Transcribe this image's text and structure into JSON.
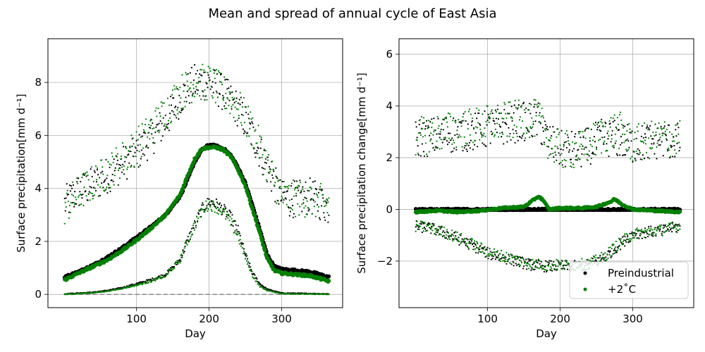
{
  "figure": {
    "title": "Mean and spread of annual cycle of East Asia"
  },
  "colors": {
    "preindustrial": "#000000",
    "plus2c": "#008000",
    "grid": "#b0b0b0",
    "zero_line": "#808080"
  },
  "chart_data": [
    {
      "type": "scatter",
      "xlabel": "Day",
      "ylabel": "Surface precipitation[mm d⁻¹]",
      "xlim": [
        -22,
        384
      ],
      "ylim": [
        -0.5,
        9.65
      ],
      "xticks": [
        100,
        200,
        300
      ],
      "yticks": [
        0,
        2,
        4,
        6,
        8
      ],
      "grid": true,
      "dashed_hline": 0,
      "series": [
        {
          "name": "Preindustrial",
          "color": "#000000",
          "mean": {
            "x": [
              1,
              20,
              40,
              60,
              80,
              100,
              120,
              140,
              160,
              170,
              180,
              190,
              200,
              210,
              220,
              230,
              240,
              250,
              260,
              270,
              280,
              290,
              300,
              320,
              340,
              365
            ],
            "y": [
              0.65,
              0.85,
              1.1,
              1.4,
              1.75,
              2.15,
              2.55,
              3.0,
              3.7,
              4.3,
              5.0,
              5.45,
              5.65,
              5.6,
              5.5,
              5.25,
              4.8,
              4.2,
              3.35,
              2.45,
              1.5,
              1.05,
              0.95,
              0.9,
              0.85,
              0.65
            ]
          },
          "upper": {
            "x": [
              1,
              20,
              40,
              60,
              80,
              100,
              120,
              140,
              160,
              180,
              200,
              220,
              240,
              260,
              280,
              300,
              320,
              340,
              365
            ],
            "y": [
              3.4,
              3.9,
              4.1,
              4.5,
              4.9,
              5.3,
              5.9,
              6.5,
              7.4,
              8.0,
              8.0,
              7.6,
              7.0,
              6.0,
              4.8,
              3.6,
              3.6,
              3.7,
              3.3
            ]
          },
          "lower": {
            "x": [
              1,
              20,
              40,
              60,
              80,
              100,
              120,
              140,
              160,
              170,
              180,
              190,
              200,
              210,
              220,
              230,
              240,
              250,
              260,
              270,
              280,
              300,
              365
            ],
            "y": [
              0.02,
              0.05,
              0.08,
              0.15,
              0.25,
              0.4,
              0.55,
              0.75,
              1.3,
              2.0,
              2.6,
              3.2,
              3.5,
              3.4,
              3.2,
              2.9,
              2.4,
              1.5,
              0.8,
              0.4,
              0.2,
              0.05,
              0.02
            ]
          }
        },
        {
          "name": "+2˚C",
          "color": "#008000",
          "mean": {
            "x": [
              1,
              20,
              40,
              60,
              80,
              100,
              120,
              140,
              160,
              170,
              180,
              190,
              200,
              210,
              220,
              230,
              240,
              250,
              260,
              270,
              280,
              290,
              300,
              320,
              340,
              365
            ],
            "y": [
              0.55,
              0.8,
              1.05,
              1.3,
              1.65,
              2.05,
              2.5,
              3.0,
              3.75,
              4.45,
              5.1,
              5.5,
              5.55,
              5.55,
              5.45,
              5.2,
              4.7,
              4.1,
              3.2,
              2.3,
              1.35,
              0.9,
              0.8,
              0.75,
              0.7,
              0.5
            ]
          },
          "upper": {
            "x": [
              1,
              20,
              40,
              60,
              80,
              100,
              120,
              140,
              160,
              180,
              200,
              220,
              240,
              260,
              280,
              300,
              320,
              340,
              365
            ],
            "y": [
              3.3,
              3.8,
              4.2,
              4.6,
              5.1,
              5.6,
              6.2,
              6.9,
              7.6,
              8.0,
              8.0,
              7.6,
              7.1,
              6.2,
              4.9,
              3.7,
              3.6,
              3.6,
              3.4
            ]
          },
          "lower": {
            "x": [
              1,
              20,
              40,
              60,
              80,
              100,
              120,
              140,
              160,
              170,
              180,
              190,
              200,
              210,
              220,
              230,
              240,
              250,
              260,
              270,
              280,
              300,
              365
            ],
            "y": [
              0.0,
              0.03,
              0.06,
              0.12,
              0.22,
              0.35,
              0.5,
              0.7,
              1.3,
              2.0,
              2.6,
              3.2,
              3.4,
              3.3,
              3.1,
              2.7,
              2.2,
              1.4,
              0.7,
              0.3,
              0.15,
              0.03,
              0.0
            ]
          }
        }
      ]
    },
    {
      "type": "scatter",
      "xlabel": "Day",
      "ylabel": "Surface precipitation change[mm d⁻¹]",
      "xlim": [
        -22,
        384
      ],
      "ylim": [
        -3.8,
        6.6
      ],
      "xticks": [
        100,
        200,
        300
      ],
      "yticks": [
        -2,
        0,
        2,
        4,
        6
      ],
      "grid": true,
      "legend": {
        "location": "lower-right",
        "entries": [
          "Preindustrial",
          "+2˚C"
        ]
      },
      "series": [
        {
          "name": "Preindustrial",
          "color": "#000000",
          "mean": {
            "x": [
              1,
              365
            ],
            "y": [
              0.0,
              0.0
            ]
          },
          "upper": {
            "x": [
              1,
              40,
              80,
              120,
              150,
              170,
              185,
              200,
              230,
              260,
              280,
              300,
              340,
              365
            ],
            "y": [
              2.7,
              2.9,
              3.0,
              3.2,
              3.4,
              3.4,
              2.6,
              2.3,
              2.3,
              2.8,
              2.7,
              2.5,
              2.7,
              2.6
            ]
          },
          "lower": {
            "x": [
              1,
              20,
              40,
              60,
              80,
              100,
              120,
              140,
              160,
              180,
              200,
              220,
              240,
              260,
              280,
              300,
              320,
              340,
              365
            ],
            "y": [
              -0.65,
              -0.72,
              -0.9,
              -1.15,
              -1.4,
              -1.7,
              -1.85,
              -2.0,
              -2.15,
              -2.2,
              -2.2,
              -2.2,
              -2.15,
              -1.9,
              -1.4,
              -0.95,
              -0.88,
              -0.82,
              -0.65
            ]
          }
        },
        {
          "name": "+2˚C",
          "color": "#008000",
          "mean": {
            "x": [
              1,
              30,
              60,
              90,
              120,
              150,
              160,
              170,
              175,
              185,
              200,
              230,
              250,
              260,
              270,
              275,
              285,
              300,
              330,
              365
            ],
            "y": [
              -0.1,
              -0.05,
              -0.1,
              -0.05,
              0.05,
              0.1,
              0.3,
              0.5,
              0.4,
              0.0,
              0.05,
              0.05,
              0.1,
              0.2,
              0.3,
              0.4,
              0.2,
              0.0,
              -0.05,
              -0.1
            ]
          },
          "upper": {
            "x": [
              1,
              40,
              80,
              120,
              150,
              170,
              185,
              200,
              230,
              260,
              280,
              300,
              340,
              365
            ],
            "y": [
              2.8,
              3.0,
              3.2,
              3.4,
              3.5,
              3.5,
              2.6,
              2.3,
              2.3,
              2.9,
              3.1,
              2.5,
              2.8,
              2.7
            ]
          },
          "lower": {
            "x": [
              1,
              20,
              40,
              60,
              80,
              100,
              120,
              140,
              160,
              180,
              200,
              220,
              240,
              260,
              280,
              300,
              320,
              340,
              365
            ],
            "y": [
              -0.65,
              -0.7,
              -0.88,
              -1.1,
              -1.35,
              -1.65,
              -1.8,
              -1.95,
              -2.1,
              -2.15,
              -2.15,
              -2.15,
              -2.1,
              -1.85,
              -1.35,
              -0.95,
              -0.88,
              -0.8,
              -0.65
            ]
          }
        }
      ]
    }
  ]
}
